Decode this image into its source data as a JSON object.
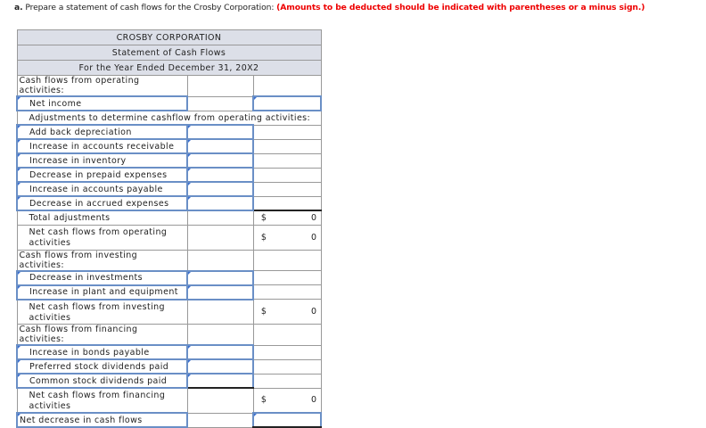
{
  "instruction": {
    "prefix": "a.",
    "text": "Prepare a statement of cash flows for the Crosby Corporation:",
    "note": "(Amounts to be deducted should be indicated with parentheses or a minus sign.)"
  },
  "header": {
    "company": "CROSBY CORPORATION",
    "statement": "Statement of Cash Flows",
    "period": "For the Year Ended December 31, 20X2"
  },
  "rows": {
    "op_header": "Cash flows from operating activities:",
    "net_income": "Net income",
    "adjustments": "Adjustments to determine cashflow from operating activities:",
    "depreciation": "Add back depreciation",
    "ar": "Increase in accounts receivable",
    "inventory": "Increase in inventory",
    "prepaid": "Decrease in prepaid expenses",
    "ap": "Increase in accounts payable",
    "accrued": "Decrease in accrued expenses",
    "total_adj": "Total adjustments",
    "net_op": "Net cash flows from operating activities",
    "inv_header": "Cash flows from investing activities:",
    "dec_inv": "Decrease in investments",
    "plant": "Increase in plant and equipment",
    "net_inv": "Net cash flows from investing activities",
    "fin_header": "Cash flows from financing activities:",
    "bonds": "Increase in bonds payable",
    "pref": "Preferred stock dividends paid",
    "common": "Common stock dividends paid",
    "net_fin": "Net cash flows from financing activities",
    "net_dec": "Net decrease in cash flows"
  },
  "values": {
    "currency": "$",
    "total_adj": "0",
    "net_op": "0",
    "net_inv": "0",
    "net_fin": "0"
  }
}
